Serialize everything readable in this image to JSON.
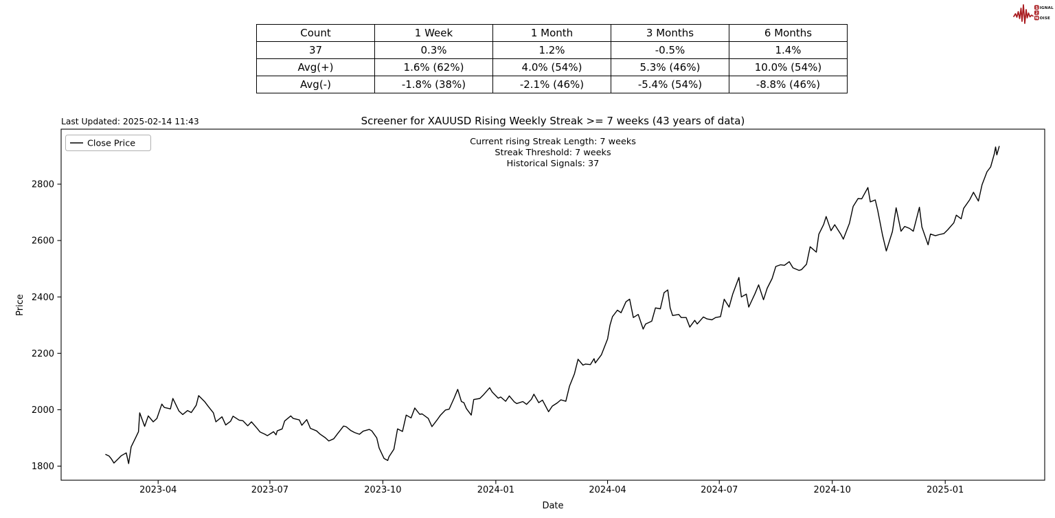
{
  "logo": {
    "color": "#a8191d",
    "row1_badge": "S",
    "row1_word": "IGNAL",
    "row2_badge": "2",
    "row3_badge": "N",
    "row3_word": "OISE"
  },
  "stats_table": {
    "headers": [
      "Count",
      "1 Week",
      "1 Month",
      "3 Months",
      "6 Months"
    ],
    "rows": [
      [
        "37",
        "0.3%",
        "1.2%",
        "-0.5%",
        "1.4%"
      ],
      [
        "Avg(+)",
        "1.6% (62%)",
        "4.0% (54%)",
        "5.3% (46%)",
        "10.0% (54%)"
      ],
      [
        "Avg(-)",
        "-1.8% (38%)",
        "-2.1% (46%)",
        "-5.4% (54%)",
        "-8.8% (46%)"
      ]
    ]
  },
  "chart": {
    "last_updated": "Last Updated: 2025-02-14 11:43",
    "title": "Screener for XAUUSD Rising Weekly Streak >= 7 weeks (43 years of data)",
    "annotations": [
      "Current rising Streak Length: 7 weeks",
      "Streak Threshold: 7 weeks",
      "Historical Signals: 37"
    ],
    "legend_label": "Close Price",
    "xlabel": "Date",
    "ylabel": "Price"
  },
  "chart_data": {
    "type": "line",
    "title": "Screener for XAUUSD Rising Weekly Streak >= 7 weeks (43 years of data)",
    "xlabel": "Date",
    "ylabel": "Price",
    "grid": false,
    "legend_position": "upper left",
    "line_color": "#000000",
    "xlim": [
      "2023-01-12",
      "2025-03-23"
    ],
    "ylim": [
      1750,
      2995
    ],
    "y_ticks": [
      1800,
      2000,
      2200,
      2400,
      2600,
      2800
    ],
    "x_ticks": [
      {
        "date": "2023-04-01",
        "label": "2023-04"
      },
      {
        "date": "2023-07-01",
        "label": "2023-07"
      },
      {
        "date": "2023-10-01",
        "label": "2023-10"
      },
      {
        "date": "2024-01-01",
        "label": "2024-01"
      },
      {
        "date": "2024-04-01",
        "label": "2024-04"
      },
      {
        "date": "2024-07-01",
        "label": "2024-07"
      },
      {
        "date": "2024-10-01",
        "label": "2024-10"
      },
      {
        "date": "2025-01-01",
        "label": "2025-01"
      }
    ],
    "series_name": "Close Price",
    "points": [
      [
        "2023-02-17",
        1842
      ],
      [
        "2023-02-20",
        1836
      ],
      [
        "2023-02-22",
        1825
      ],
      [
        "2023-02-24",
        1811
      ],
      [
        "2023-02-28",
        1828
      ],
      [
        "2023-03-02",
        1837
      ],
      [
        "2023-03-06",
        1847
      ],
      [
        "2023-03-08",
        1809
      ],
      [
        "2023-03-10",
        1868
      ],
      [
        "2023-03-14",
        1904
      ],
      [
        "2023-03-16",
        1922
      ],
      [
        "2023-03-17",
        1989
      ],
      [
        "2023-03-21",
        1941
      ],
      [
        "2023-03-24",
        1978
      ],
      [
        "2023-03-28",
        1957
      ],
      [
        "2023-03-31",
        1969
      ],
      [
        "2023-04-04",
        2020
      ],
      [
        "2023-04-06",
        2008
      ],
      [
        "2023-04-11",
        2003
      ],
      [
        "2023-04-13",
        2040
      ],
      [
        "2023-04-18",
        1995
      ],
      [
        "2023-04-21",
        1983
      ],
      [
        "2023-04-25",
        1997
      ],
      [
        "2023-04-28",
        1990
      ],
      [
        "2023-05-02",
        2016
      ],
      [
        "2023-05-04",
        2050
      ],
      [
        "2023-05-09",
        2028
      ],
      [
        "2023-05-12",
        2011
      ],
      [
        "2023-05-16",
        1989
      ],
      [
        "2023-05-18",
        1957
      ],
      [
        "2023-05-23",
        1975
      ],
      [
        "2023-05-26",
        1946
      ],
      [
        "2023-05-30",
        1959
      ],
      [
        "2023-06-01",
        1977
      ],
      [
        "2023-06-06",
        1963
      ],
      [
        "2023-06-09",
        1961
      ],
      [
        "2023-06-13",
        1943
      ],
      [
        "2023-06-16",
        1957
      ],
      [
        "2023-06-21",
        1932
      ],
      [
        "2023-06-23",
        1921
      ],
      [
        "2023-06-27",
        1913
      ],
      [
        "2023-06-29",
        1908
      ],
      [
        "2023-07-04",
        1922
      ],
      [
        "2023-07-06",
        1911
      ],
      [
        "2023-07-07",
        1925
      ],
      [
        "2023-07-11",
        1932
      ],
      [
        "2023-07-13",
        1960
      ],
      [
        "2023-07-18",
        1978
      ],
      [
        "2023-07-20",
        1969
      ],
      [
        "2023-07-25",
        1964
      ],
      [
        "2023-07-27",
        1945
      ],
      [
        "2023-07-31",
        1965
      ],
      [
        "2023-08-03",
        1934
      ],
      [
        "2023-08-08",
        1925
      ],
      [
        "2023-08-11",
        1913
      ],
      [
        "2023-08-15",
        1901
      ],
      [
        "2023-08-18",
        1889
      ],
      [
        "2023-08-22",
        1897
      ],
      [
        "2023-08-25",
        1914
      ],
      [
        "2023-08-30",
        1942
      ],
      [
        "2023-09-01",
        1940
      ],
      [
        "2023-09-05",
        1926
      ],
      [
        "2023-09-08",
        1919
      ],
      [
        "2023-09-12",
        1913
      ],
      [
        "2023-09-15",
        1924
      ],
      [
        "2023-09-20",
        1930
      ],
      [
        "2023-09-22",
        1925
      ],
      [
        "2023-09-26",
        1900
      ],
      [
        "2023-09-28",
        1864
      ],
      [
        "2023-10-02",
        1827
      ],
      [
        "2023-10-05",
        1820
      ],
      [
        "2023-10-06",
        1833
      ],
      [
        "2023-10-10",
        1860
      ],
      [
        "2023-10-13",
        1932
      ],
      [
        "2023-10-17",
        1923
      ],
      [
        "2023-10-20",
        1981
      ],
      [
        "2023-10-24",
        1971
      ],
      [
        "2023-10-27",
        2006
      ],
      [
        "2023-10-31",
        1984
      ],
      [
        "2023-11-02",
        1985
      ],
      [
        "2023-11-07",
        1969
      ],
      [
        "2023-11-10",
        1940
      ],
      [
        "2023-11-14",
        1963
      ],
      [
        "2023-11-17",
        1981
      ],
      [
        "2023-11-21",
        1999
      ],
      [
        "2023-11-24",
        2002
      ],
      [
        "2023-11-28",
        2041
      ],
      [
        "2023-12-01",
        2072
      ],
      [
        "2023-12-04",
        2029
      ],
      [
        "2023-12-06",
        2025
      ],
      [
        "2023-12-08",
        2004
      ],
      [
        "2023-12-12",
        1981
      ],
      [
        "2023-12-14",
        2036
      ],
      [
        "2023-12-19",
        2040
      ],
      [
        "2023-12-22",
        2053
      ],
      [
        "2023-12-27",
        2078
      ],
      [
        "2023-12-29",
        2063
      ],
      [
        "2024-01-03",
        2041
      ],
      [
        "2024-01-05",
        2045
      ],
      [
        "2024-01-09",
        2030
      ],
      [
        "2024-01-12",
        2049
      ],
      [
        "2024-01-16",
        2028
      ],
      [
        "2024-01-18",
        2022
      ],
      [
        "2024-01-23",
        2029
      ],
      [
        "2024-01-26",
        2019
      ],
      [
        "2024-01-30",
        2037
      ],
      [
        "2024-02-01",
        2055
      ],
      [
        "2024-02-05",
        2025
      ],
      [
        "2024-02-08",
        2034
      ],
      [
        "2024-02-13",
        1993
      ],
      [
        "2024-02-16",
        2013
      ],
      [
        "2024-02-20",
        2024
      ],
      [
        "2024-02-23",
        2035
      ],
      [
        "2024-02-27",
        2030
      ],
      [
        "2024-03-01",
        2083
      ],
      [
        "2024-03-05",
        2127
      ],
      [
        "2024-03-08",
        2179
      ],
      [
        "2024-03-12",
        2158
      ],
      [
        "2024-03-14",
        2162
      ],
      [
        "2024-03-18",
        2160
      ],
      [
        "2024-03-21",
        2181
      ],
      [
        "2024-03-22",
        2166
      ],
      [
        "2024-03-27",
        2195
      ],
      [
        "2024-04-01",
        2251
      ],
      [
        "2024-04-03",
        2300
      ],
      [
        "2024-04-05",
        2330
      ],
      [
        "2024-04-09",
        2353
      ],
      [
        "2024-04-12",
        2344
      ],
      [
        "2024-04-16",
        2383
      ],
      [
        "2024-04-19",
        2392
      ],
      [
        "2024-04-22",
        2327
      ],
      [
        "2024-04-26",
        2338
      ],
      [
        "2024-04-30",
        2286
      ],
      [
        "2024-05-02",
        2304
      ],
      [
        "2024-05-07",
        2314
      ],
      [
        "2024-05-10",
        2361
      ],
      [
        "2024-05-14",
        2358
      ],
      [
        "2024-05-17",
        2415
      ],
      [
        "2024-05-20",
        2425
      ],
      [
        "2024-05-22",
        2361
      ],
      [
        "2024-05-24",
        2334
      ],
      [
        "2024-05-29",
        2338
      ],
      [
        "2024-05-31",
        2327
      ],
      [
        "2024-06-04",
        2327
      ],
      [
        "2024-06-07",
        2293
      ],
      [
        "2024-06-11",
        2317
      ],
      [
        "2024-06-13",
        2304
      ],
      [
        "2024-06-18",
        2329
      ],
      [
        "2024-06-21",
        2322
      ],
      [
        "2024-06-25",
        2319
      ],
      [
        "2024-06-28",
        2327
      ],
      [
        "2024-07-02",
        2330
      ],
      [
        "2024-07-05",
        2392
      ],
      [
        "2024-07-09",
        2364
      ],
      [
        "2024-07-12",
        2411
      ],
      [
        "2024-07-17",
        2469
      ],
      [
        "2024-07-19",
        2400
      ],
      [
        "2024-07-23",
        2410
      ],
      [
        "2024-07-25",
        2364
      ],
      [
        "2024-07-30",
        2411
      ],
      [
        "2024-08-02",
        2443
      ],
      [
        "2024-08-06",
        2390
      ],
      [
        "2024-08-09",
        2431
      ],
      [
        "2024-08-13",
        2465
      ],
      [
        "2024-08-16",
        2508
      ],
      [
        "2024-08-20",
        2514
      ],
      [
        "2024-08-23",
        2512
      ],
      [
        "2024-08-27",
        2525
      ],
      [
        "2024-08-30",
        2503
      ],
      [
        "2024-09-04",
        2494
      ],
      [
        "2024-09-06",
        2497
      ],
      [
        "2024-09-10",
        2516
      ],
      [
        "2024-09-13",
        2578
      ],
      [
        "2024-09-18",
        2559
      ],
      [
        "2024-09-20",
        2622
      ],
      [
        "2024-09-24",
        2657
      ],
      [
        "2024-09-26",
        2685
      ],
      [
        "2024-09-30",
        2635
      ],
      [
        "2024-10-03",
        2656
      ],
      [
        "2024-10-08",
        2622
      ],
      [
        "2024-10-10",
        2605
      ],
      [
        "2024-10-15",
        2661
      ],
      [
        "2024-10-18",
        2721
      ],
      [
        "2024-10-22",
        2749
      ],
      [
        "2024-10-25",
        2748
      ],
      [
        "2024-10-30",
        2788
      ],
      [
        "2024-11-01",
        2737
      ],
      [
        "2024-11-05",
        2744
      ],
      [
        "2024-11-07",
        2707
      ],
      [
        "2024-11-11",
        2618
      ],
      [
        "2024-11-14",
        2563
      ],
      [
        "2024-11-19",
        2632
      ],
      [
        "2024-11-22",
        2716
      ],
      [
        "2024-11-26",
        2633
      ],
      [
        "2024-11-29",
        2650
      ],
      [
        "2024-12-03",
        2643
      ],
      [
        "2024-12-06",
        2633
      ],
      [
        "2024-12-11",
        2718
      ],
      [
        "2024-12-13",
        2648
      ],
      [
        "2024-12-18",
        2585
      ],
      [
        "2024-12-20",
        2623
      ],
      [
        "2024-12-24",
        2617
      ],
      [
        "2024-12-27",
        2621
      ],
      [
        "2024-12-31",
        2625
      ],
      [
        "2025-01-03",
        2638
      ],
      [
        "2025-01-08",
        2663
      ],
      [
        "2025-01-10",
        2690
      ],
      [
        "2025-01-14",
        2677
      ],
      [
        "2025-01-16",
        2714
      ],
      [
        "2025-01-21",
        2745
      ],
      [
        "2025-01-24",
        2771
      ],
      [
        "2025-01-28",
        2740
      ],
      [
        "2025-01-31",
        2798
      ],
      [
        "2025-02-04",
        2844
      ],
      [
        "2025-02-07",
        2861
      ],
      [
        "2025-02-10",
        2908
      ],
      [
        "2025-02-11",
        2932
      ],
      [
        "2025-02-12",
        2904
      ],
      [
        "2025-02-14",
        2935
      ]
    ]
  }
}
